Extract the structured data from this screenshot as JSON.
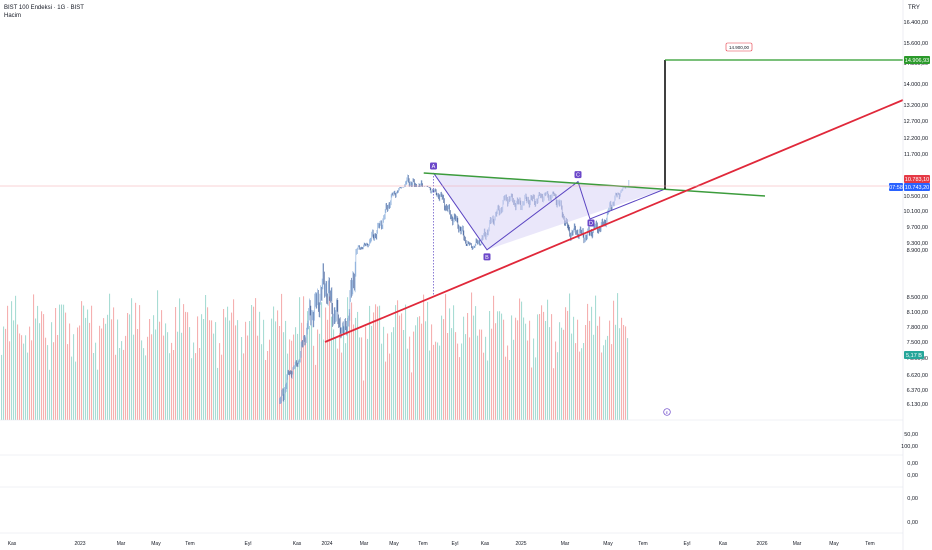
{
  "header": {
    "title": "BIST 100 Endeksi · 1G · BIST",
    "volume_label": "Hacim"
  },
  "currency": "TRY",
  "colors": {
    "up": "#7aa3d6",
    "down": "#2f4f8f",
    "vol_up": "#a8dcd4",
    "vol_down": "#f5b0b0",
    "trend_support": "#e0283a",
    "trend_resistance": "#3c9c3c",
    "target_line": "#2b9a2b",
    "pattern_fill": "#d9d3f5",
    "pattern_stroke": "#5b45c2",
    "pattern_marker": "#6b47c9",
    "current_price_bg": "#e53945",
    "price_bg": "#2962ff",
    "volume_tag_bg": "#26a69a"
  },
  "price_axis_ticks": [
    "16.400,00",
    "15.600,00",
    "14.800,00",
    "14.000,00",
    "13.200,00",
    "12.700,00",
    "12.200,00",
    "11.700,00",
    "10.500,00",
    "10.100,00",
    "9.700,00",
    "9.300,00",
    "8.900,00",
    "8.500,00",
    "8.100,00",
    "7.800,00",
    "7.500,00",
    "7.200,00",
    "6.620,00",
    "6.370,00",
    "6.130,00"
  ],
  "lower_axis_ticks": [
    "50,00",
    "100,00",
    "0,00",
    "0,00",
    "0,00",
    "0,00"
  ],
  "tags": {
    "target": "14.906,93",
    "current": "10.783,10",
    "price": "10.743,20",
    "time": "07:58",
    "volume": "5,17 B",
    "target_callout": "14.900,00"
  },
  "time_axis": [
    "Kas",
    "2023",
    "Mar",
    "May",
    "Tem",
    "Eyl",
    "Kas",
    "2024",
    "Mar",
    "May",
    "Tem",
    "Eyl",
    "Kas",
    "2025",
    "Mar",
    "May",
    "Tem",
    "Eyl",
    "Kas",
    "2026",
    "Mar",
    "May",
    "Tem"
  ],
  "pattern_points": [
    {
      "label": "A",
      "value": 11150
    },
    {
      "label": "B",
      "value": 8510
    },
    {
      "label": "C",
      "value": 10900
    },
    {
      "label": "D",
      "value": 9500
    }
  ],
  "event_marker": "E",
  "chart_data": {
    "type": "line",
    "title": "BIST 100 Endeksi · 1G · BIST",
    "x_unit": "date",
    "ylabel": "",
    "ylim": [
      6000,
      16500
    ],
    "series": [
      {
        "x": [
          "2023-10-02",
          "2023-11-01",
          "2023-12-01",
          "2024-01-01",
          "2024-02-01",
          "2024-03-01",
          "2024-04-01",
          "2024-05-01",
          "2024-06-01",
          "2024-07-01",
          "2024-08-01",
          "2024-09-01",
          "2024-10-01",
          "2024-11-01",
          "2024-12-01",
          "2025-01-02",
          "2025-02-03",
          "2025-03-03",
          "2025-04-01",
          "2025-05-02",
          "2025-06-02",
          "2025-07-01",
          "2025-07-22"
        ],
        "values": [
          6100,
          6900,
          7950,
          8200,
          7650,
          8600,
          9100,
          10000,
          10900,
          10700,
          10050,
          9400,
          8650,
          9300,
          10000,
          9900,
          10050,
          10150,
          9200,
          9100,
          9350,
          10150,
          10743
        ]
      }
    ],
    "volume_unit": "B",
    "volume_last": 5.17,
    "resistance_trend": {
      "from": [
        "2024-07-01",
        11150
      ],
      "to": [
        "2025-09-01",
        10650
      ]
    },
    "support_trend": {
      "from": [
        "2023-12-15",
        7200
      ],
      "to": [
        "2026-08-31",
        13500
      ]
    },
    "target_level": 14906.93,
    "current_level": 10783.1,
    "grid": false,
    "legend": "none"
  }
}
